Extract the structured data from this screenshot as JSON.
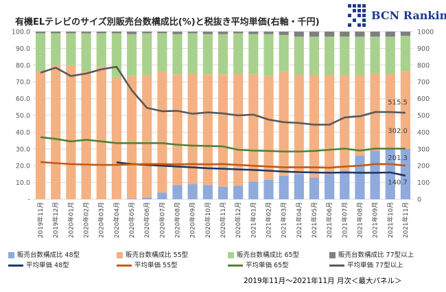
{
  "title": "有機ELテレビのサイズ別販売台数構成比(%)と税抜き平均単価(右軸・千円)",
  "brand": "BCN Ranking",
  "footer": "2019年11月～2021年11月 月次＜最大パネル＞",
  "colors": {
    "share48": "#8faadc",
    "share55": "#f4b183",
    "share65": "#a9d18e",
    "share77": "#7f7f7f",
    "price48": "#1f3864",
    "price55": "#c55a11",
    "price65": "#548235",
    "price77": "#595959",
    "grid": "#d9d9d9",
    "axisText": "#595959"
  },
  "chart_data": {
    "type": "bar",
    "stacked": true,
    "title": "有機ELテレビのサイズ別販売台数構成比(%)と税抜き平均単価(右軸・千円)",
    "categories": [
      "2019年11月",
      "2019年12月",
      "2020年01月",
      "2020年02月",
      "2020年03月",
      "2020年04月",
      "2020年05月",
      "2020年06月",
      "2020年07月",
      "2020年08月",
      "2020年09月",
      "2020年10月",
      "2020年11月",
      "2020年12月",
      "2021年01月",
      "2021年02月",
      "2021年03月",
      "2021年04月",
      "2021年05月",
      "2021年06月",
      "2021年07月",
      "2021年08月",
      "2021年09月",
      "2021年10月",
      "2021年11月"
    ],
    "left_axis": {
      "min": 0,
      "max": 100,
      "ticks": [
        "-",
        "10.0",
        "20.0",
        "30.0",
        "40.0",
        "50.0",
        "60.0",
        "70.0",
        "80.0",
        "90.0",
        "100.0"
      ]
    },
    "right_axis": {
      "min": 0,
      "max": 1000,
      "ticks": [
        "0",
        "100",
        "200",
        "300",
        "400",
        "500",
        "600",
        "700",
        "800",
        "900",
        "1000"
      ]
    },
    "bar_series": [
      {
        "name": "販売台数構成比 48型",
        "color_key": "share48",
        "values": [
          0,
          0,
          0,
          0,
          0,
          0,
          0.5,
          1,
          4,
          8.5,
          9,
          8.5,
          7.5,
          8,
          10.5,
          11.5,
          14,
          15,
          13,
          15,
          17,
          26,
          29,
          30,
          30
        ]
      },
      {
        "name": "販売台数構成比 55型",
        "color_key": "share55",
        "values": [
          76,
          80,
          80,
          76,
          79,
          73,
          73,
          73,
          72,
          66,
          66,
          66,
          67,
          67,
          64,
          62,
          62,
          59,
          61,
          59,
          57,
          48,
          46,
          45,
          46.5
        ]
      },
      {
        "name": "販売台数構成比 65型",
        "color_key": "share65",
        "values": [
          23,
          19,
          19,
          23,
          20,
          26,
          25,
          25,
          23,
          24,
          24,
          24,
          24,
          24,
          24,
          25,
          22,
          23,
          23,
          23,
          23,
          23,
          22,
          22,
          21
        ]
      },
      {
        "name": "販売台数構成比 77型以上",
        "color_key": "share77",
        "values": [
          1,
          1,
          1,
          1,
          1,
          1,
          1.5,
          1,
          1,
          1.5,
          1,
          1.5,
          1.5,
          1,
          1.5,
          1.5,
          2,
          3,
          3,
          3,
          3,
          3,
          3,
          3,
          2.5
        ]
      }
    ],
    "line_series": [
      {
        "name": "平均単価 48型",
        "color_key": "price48",
        "values": [
          null,
          null,
          null,
          null,
          null,
          220,
          210,
          205,
          200,
          195,
          190,
          185,
          182,
          178,
          175,
          170,
          165,
          162,
          160,
          158,
          160,
          158,
          158,
          160,
          140.7
        ]
      },
      {
        "name": "平均単価 55型",
        "color_key": "price55",
        "values": [
          222,
          215,
          210,
          207,
          205,
          205,
          208,
          210,
          210,
          208,
          210,
          208,
          210,
          205,
          200,
          195,
          190,
          190,
          190,
          188,
          195,
          200,
          210,
          210,
          201.3
        ]
      },
      {
        "name": "平均単価 65型",
        "color_key": "price65",
        "values": [
          370,
          360,
          345,
          355,
          345,
          335,
          335,
          335,
          335,
          325,
          320,
          318,
          315,
          295,
          290,
          288,
          285,
          285,
          288,
          295,
          302,
          290,
          302,
          302,
          302.0
        ]
      },
      {
        "name": "平均単価 77型以上",
        "color_key": "price77",
        "values": [
          755,
          785,
          735,
          750,
          775,
          790,
          650,
          545,
          525,
          527,
          510,
          518,
          512,
          500,
          505,
          475,
          460,
          455,
          445,
          445,
          488,
          495,
          520,
          520,
          515.5
        ]
      }
    ],
    "data_labels": [
      {
        "series": "平均単価 77型以上",
        "text": "515.5"
      },
      {
        "series": "平均単価 65型",
        "text": "302.0"
      },
      {
        "series": "平均単価 55型",
        "text": "201.3"
      },
      {
        "series": "平均単価 48型",
        "text": "140.7"
      }
    ]
  },
  "legend": [
    {
      "label": "販売台数構成比 48型",
      "kind": "box",
      "color_key": "share48"
    },
    {
      "label": "販売台数構成比 55型",
      "kind": "box",
      "color_key": "share55"
    },
    {
      "label": "販売台数構成比 65型",
      "kind": "box",
      "color_key": "share65"
    },
    {
      "label": "販売台数構成比 77型以上",
      "kind": "box",
      "color_key": "share77"
    },
    {
      "label": "平均単価 48型",
      "kind": "line",
      "color_key": "price48"
    },
    {
      "label": "平均単価 55型",
      "kind": "line",
      "color_key": "price55"
    },
    {
      "label": "平均単価 65型",
      "kind": "line",
      "color_key": "price65"
    },
    {
      "label": "平均単価 77型以上",
      "kind": "line",
      "color_key": "price77"
    }
  ]
}
